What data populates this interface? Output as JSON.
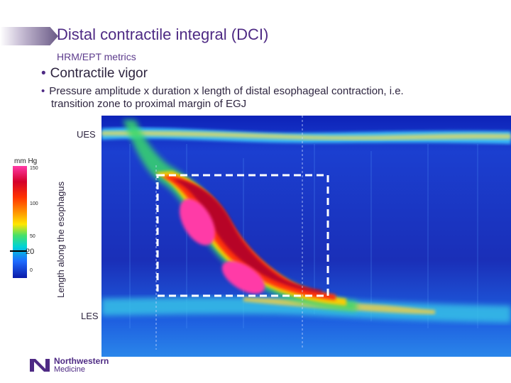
{
  "slide": {
    "title": "Distal contractile integral (DCI)",
    "subtitle": "HRM/EPT metrics",
    "bullets": [
      {
        "text": "Contractile vigor"
      },
      {
        "text": "Pressure amplitude x duration x length of distal esophageal contraction, i.e.",
        "continuation": "transition zone to proximal margin of EGJ"
      }
    ]
  },
  "figure": {
    "y_axis_label": "Length along the esophagus",
    "top_label": "UES",
    "bottom_label": "LES",
    "legend": {
      "unit": "mm Hg",
      "ticks": [
        "150",
        "100",
        "50",
        "20",
        "0"
      ],
      "highlight_value": "20"
    },
    "colors": {
      "background": "#1b2bb0",
      "contraction_high": "#ff3aa7",
      "contraction_mid": "#d4002a",
      "dashed_box": "#ffffff"
    }
  },
  "logo": {
    "line1": "Northwestern",
    "line2": "Medicine"
  }
}
